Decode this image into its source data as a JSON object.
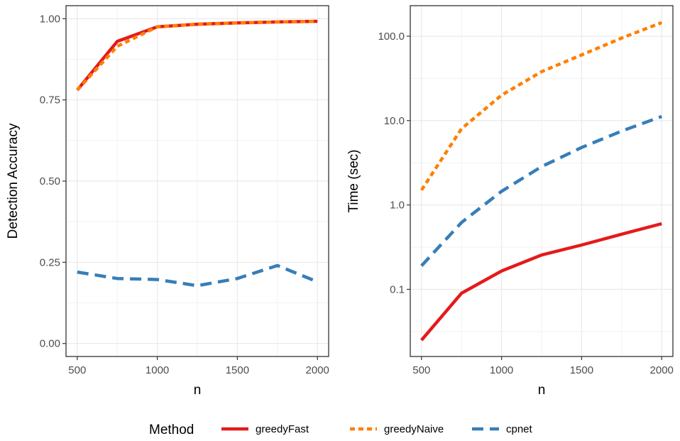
{
  "chart_data": [
    {
      "type": "line",
      "xlabel": "n",
      "ylabel": "Detection Accuracy",
      "x": [
        500,
        750,
        1000,
        1250,
        1500,
        1750,
        2000
      ],
      "xticks": [
        500,
        1000,
        1500,
        2000
      ],
      "xlim": [
        430,
        2070
      ],
      "ylim": [
        -0.04,
        1.04
      ],
      "yticks": [
        0.0,
        0.25,
        0.5,
        0.75,
        1.0
      ],
      "ytick_labels": [
        "0.00",
        "0.25",
        "0.50",
        "0.75",
        "1.00"
      ],
      "grid": true,
      "series": [
        {
          "name": "greedyFast",
          "values": [
            0.78,
            0.93,
            0.975,
            0.983,
            0.987,
            0.99,
            0.992
          ]
        },
        {
          "name": "greedyNaive",
          "values": [
            0.78,
            0.915,
            0.975,
            0.983,
            0.987,
            0.99,
            0.992
          ]
        },
        {
          "name": "cpnet",
          "values": [
            0.22,
            0.2,
            0.197,
            0.178,
            0.2,
            0.24,
            0.19
          ]
        }
      ]
    },
    {
      "type": "line",
      "xlabel": "n",
      "ylabel": "Time (sec)",
      "x": [
        500,
        750,
        1000,
        1250,
        1500,
        1750,
        2000
      ],
      "xticks": [
        500,
        1000,
        1500,
        2000
      ],
      "xlim": [
        430,
        2070
      ],
      "yscale": "log",
      "ylim": [
        0.016,
        230
      ],
      "yticks": [
        0.1,
        1,
        10,
        100
      ],
      "ytick_labels": [
        "0.1",
        "1.0",
        "10.0",
        "100.0"
      ],
      "grid": true,
      "series": [
        {
          "name": "greedyFast",
          "values": [
            0.025,
            0.09,
            0.165,
            0.255,
            0.335,
            0.45,
            0.6
          ]
        },
        {
          "name": "greedyNaive",
          "values": [
            1.5,
            8.0,
            20,
            38,
            60,
            95,
            145
          ]
        },
        {
          "name": "cpnet",
          "values": [
            0.19,
            0.62,
            1.45,
            2.85,
            4.8,
            7.5,
            11.2
          ]
        }
      ]
    }
  ],
  "legend": {
    "title": "Method",
    "position": "bottom",
    "items": [
      {
        "label": "greedyFast",
        "color": "#e41a1c",
        "dash": "solid"
      },
      {
        "label": "greedyNaive",
        "color": "#ff7f00",
        "dash": "dotted"
      },
      {
        "label": "cpnet",
        "color": "#377eb8",
        "dash": "dashed"
      }
    ]
  }
}
